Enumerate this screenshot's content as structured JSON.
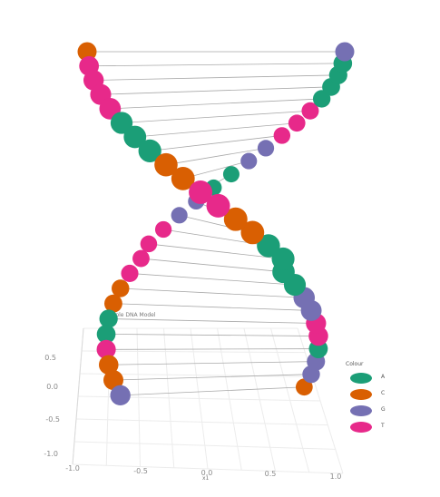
{
  "chart_data": {
    "type": "scatter",
    "title": "Simple DNA Model",
    "subtitle": "",
    "xlabel": "x1",
    "ylabel": "",
    "grid": true,
    "legend_title": "Colour",
    "legend_placement": "right",
    "legend_entries": [
      "A",
      "C",
      "G",
      "T"
    ],
    "colors": {
      "A": "#1b9e77",
      "C": "#d95f02",
      "G": "#7570b3",
      "T": "#e7298a"
    },
    "x_ticks": [
      "-1.0",
      "-0.5",
      "0.0",
      "0.5",
      "1.0"
    ],
    "z_ticks": [
      "0.5",
      "0.0",
      "-0.5",
      "-1.0"
    ],
    "strand_a": [
      "C",
      "T",
      "T",
      "T",
      "T",
      "A",
      "A",
      "A",
      "C",
      "C",
      "T",
      "T",
      "C",
      "C",
      "A",
      "A",
      "A",
      "A",
      "G",
      "G",
      "T",
      "T",
      "A",
      "G",
      "G",
      "C"
    ],
    "strand_b": [
      "G",
      "A",
      "A",
      "A",
      "A",
      "T",
      "T",
      "T",
      "G",
      "G",
      "A",
      "A",
      "G",
      "G",
      "T",
      "T",
      "T",
      "T",
      "C",
      "C",
      "A",
      "A",
      "T",
      "C",
      "C",
      "G"
    ]
  }
}
